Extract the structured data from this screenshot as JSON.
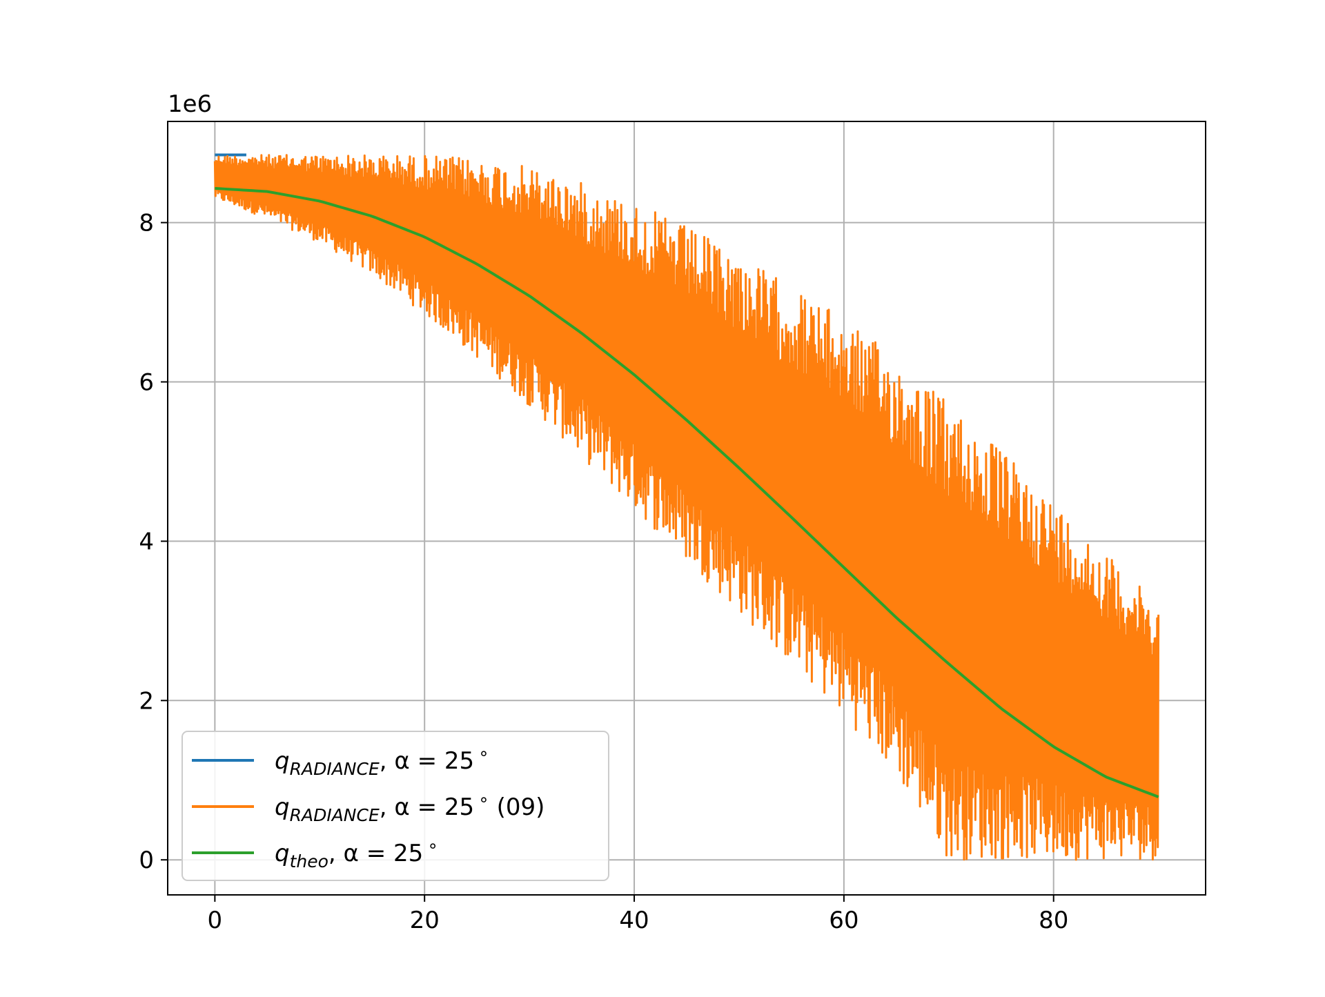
{
  "chart_data": {
    "type": "line",
    "title": "",
    "xlabel": "",
    "ylabel": "",
    "y_offset_label": "1e6",
    "xlim": [
      -4.5,
      94.5
    ],
    "ylim": [
      -0.44,
      9.27
    ],
    "xticks": [
      0,
      20,
      40,
      60,
      80
    ],
    "xtick_labels": [
      "0",
      "20",
      "40",
      "60",
      "80"
    ],
    "yticks": [
      0,
      2,
      4,
      6,
      8
    ],
    "ytick_labels": [
      "0",
      "2",
      "4",
      "6",
      "8"
    ],
    "grid": true,
    "legend_position": "lower-left",
    "x_range": [
      0,
      90
    ],
    "series": [
      {
        "name": "q_RADIANCE, α = 25°",
        "legend_main": "q",
        "legend_sub": "RADIANCE",
        "legend_tail": ", α = 25",
        "legend_deg": "∘",
        "legend_suffix": "",
        "color": "#1f77b4",
        "kind": "envelope",
        "x": [
          0,
          3
        ],
        "upper": [
          8.85,
          8.85
        ],
        "lower": [
          8.75,
          8.75
        ]
      },
      {
        "name": "q_RADIANCE, α = 25° (09)",
        "legend_main": "q",
        "legend_sub": "RADIANCE",
        "legend_tail": ", α = 25",
        "legend_deg": "∘",
        "legend_suffix": "  (09)",
        "color": "#ff7f0e",
        "kind": "oscillating",
        "x": [
          0,
          5,
          10,
          15,
          20,
          25,
          30,
          35,
          40,
          45,
          50,
          55,
          60,
          65,
          70,
          75,
          80,
          85,
          90
        ],
        "upper": [
          8.85,
          8.85,
          8.85,
          8.85,
          8.85,
          8.8,
          8.7,
          8.5,
          8.25,
          7.95,
          7.6,
          7.2,
          6.8,
          6.3,
          5.75,
          5.15,
          4.5,
          3.85,
          3.2
        ],
        "lower": [
          8.3,
          8.05,
          7.75,
          7.35,
          6.85,
          6.3,
          5.7,
          5.05,
          4.4,
          3.75,
          3.1,
          2.45,
          1.8,
          1.05,
          0.0,
          0.0,
          0.0,
          0.0,
          0.0
        ]
      },
      {
        "name": "q_theo, α = 25°",
        "legend_main": "q",
        "legend_sub": "theo",
        "legend_tail": ", α = 25",
        "legend_deg": "∘",
        "legend_suffix": "",
        "color": "#2ca02c",
        "kind": "line",
        "x": [
          0,
          5,
          10,
          15,
          20,
          25,
          30,
          35,
          40,
          45,
          50,
          55,
          60,
          65,
          70,
          75,
          80,
          85,
          90
        ],
        "y": [
          8.43,
          8.39,
          8.27,
          8.08,
          7.82,
          7.48,
          7.08,
          6.61,
          6.09,
          5.52,
          4.92,
          4.3,
          3.67,
          3.04,
          2.46,
          1.9,
          1.42,
          1.04,
          0.79
        ]
      }
    ]
  }
}
